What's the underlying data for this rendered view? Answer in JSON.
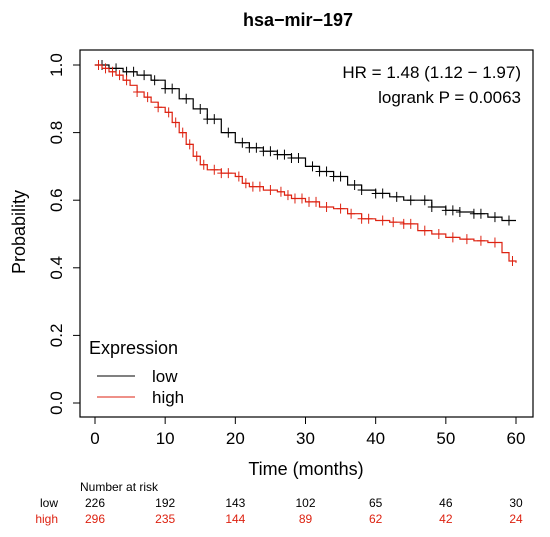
{
  "chart_data": {
    "type": "line",
    "title": "hsa−mir−197",
    "xlabel": "Time (months)",
    "ylabel": "Probability",
    "xlim": [
      0,
      60
    ],
    "ylim": [
      0,
      1
    ],
    "x_ticks": [
      0,
      10,
      20,
      30,
      40,
      50,
      60
    ],
    "y_ticks": [
      "0.0",
      "0.2",
      "0.4",
      "0.6",
      "0.8",
      "1.0"
    ],
    "annotations": {
      "hr": "HR = 1.48 (1.12 − 1.97)",
      "logrank": "logrank P = 0.0063"
    },
    "legend": {
      "title": "Expression",
      "position": "bottom-left",
      "items": [
        {
          "label": "low",
          "color": "#000000"
        },
        {
          "label": "high",
          "color": "#dd2211"
        }
      ]
    },
    "series": [
      {
        "name": "low",
        "color": "#000000",
        "points": [
          [
            0,
            1.0
          ],
          [
            2,
            0.99
          ],
          [
            4,
            0.98
          ],
          [
            6,
            0.97
          ],
          [
            8,
            0.955
          ],
          [
            10,
            0.93
          ],
          [
            12,
            0.9
          ],
          [
            14,
            0.87
          ],
          [
            16,
            0.84
          ],
          [
            18,
            0.8
          ],
          [
            20,
            0.77
          ],
          [
            22,
            0.755
          ],
          [
            24,
            0.745
          ],
          [
            26,
            0.735
          ],
          [
            28,
            0.725
          ],
          [
            30,
            0.7
          ],
          [
            32,
            0.685
          ],
          [
            34,
            0.67
          ],
          [
            36,
            0.645
          ],
          [
            38,
            0.63
          ],
          [
            40,
            0.62
          ],
          [
            42,
            0.61
          ],
          [
            44,
            0.6
          ],
          [
            46,
            0.6
          ],
          [
            48,
            0.58
          ],
          [
            50,
            0.57
          ],
          [
            52,
            0.565
          ],
          [
            54,
            0.56
          ],
          [
            56,
            0.55
          ],
          [
            58,
            0.54
          ],
          [
            60,
            0.54
          ]
        ],
        "censor_x": [
          1,
          3,
          4.5,
          5.5,
          7,
          8.5,
          10,
          11,
          13,
          15,
          16,
          17,
          19,
          21,
          22,
          23,
          24,
          25,
          26,
          27,
          28,
          29,
          31,
          32,
          33,
          34,
          35,
          37,
          38,
          40,
          41,
          43,
          45,
          47,
          48,
          50,
          51,
          52,
          54,
          55,
          57,
          59
        ]
      },
      {
        "name": "high",
        "color": "#dd2211",
        "points": [
          [
            0,
            1.0
          ],
          [
            1,
            0.99
          ],
          [
            2,
            0.98
          ],
          [
            3,
            0.97
          ],
          [
            4,
            0.955
          ],
          [
            5,
            0.94
          ],
          [
            6,
            0.92
          ],
          [
            7,
            0.905
          ],
          [
            8,
            0.89
          ],
          [
            9,
            0.875
          ],
          [
            10,
            0.86
          ],
          [
            11,
            0.83
          ],
          [
            12,
            0.8
          ],
          [
            13,
            0.765
          ],
          [
            14,
            0.73
          ],
          [
            15,
            0.705
          ],
          [
            16,
            0.69
          ],
          [
            18,
            0.68
          ],
          [
            20,
            0.67
          ],
          [
            21,
            0.65
          ],
          [
            22,
            0.64
          ],
          [
            24,
            0.63
          ],
          [
            26,
            0.625
          ],
          [
            27,
            0.615
          ],
          [
            28,
            0.605
          ],
          [
            30,
            0.595
          ],
          [
            32,
            0.58
          ],
          [
            34,
            0.575
          ],
          [
            36,
            0.56
          ],
          [
            38,
            0.545
          ],
          [
            40,
            0.54
          ],
          [
            42,
            0.535
          ],
          [
            44,
            0.53
          ],
          [
            46,
            0.51
          ],
          [
            48,
            0.5
          ],
          [
            50,
            0.49
          ],
          [
            52,
            0.485
          ],
          [
            54,
            0.48
          ],
          [
            56,
            0.475
          ],
          [
            58,
            0.445
          ],
          [
            59,
            0.42
          ],
          [
            60,
            0.415
          ]
        ],
        "censor_x": [
          0.5,
          1.5,
          2.5,
          3.5,
          4.5,
          6,
          7.5,
          9,
          10.5,
          11.5,
          12.5,
          13.5,
          14.5,
          15.5,
          17,
          18,
          19,
          20.5,
          21.5,
          22.5,
          23.5,
          25,
          26.5,
          27.5,
          28.5,
          29.5,
          30.5,
          31.5,
          33,
          35,
          36.5,
          38,
          39,
          41,
          42.5,
          44,
          45,
          47,
          49,
          51,
          53,
          55,
          57,
          59.5
        ]
      }
    ],
    "number_at_risk": {
      "header": "Number at risk",
      "times": [
        0,
        10,
        20,
        30,
        40,
        50,
        60
      ],
      "rows": [
        {
          "label": "low",
          "color": "#000000",
          "values": [
            "226",
            "192",
            "143",
            "102",
            "65",
            "46",
            "30"
          ]
        },
        {
          "label": "high",
          "color": "#dd2211",
          "values": [
            "296",
            "235",
            "144",
            "89",
            "62",
            "42",
            "24"
          ]
        }
      ]
    }
  }
}
